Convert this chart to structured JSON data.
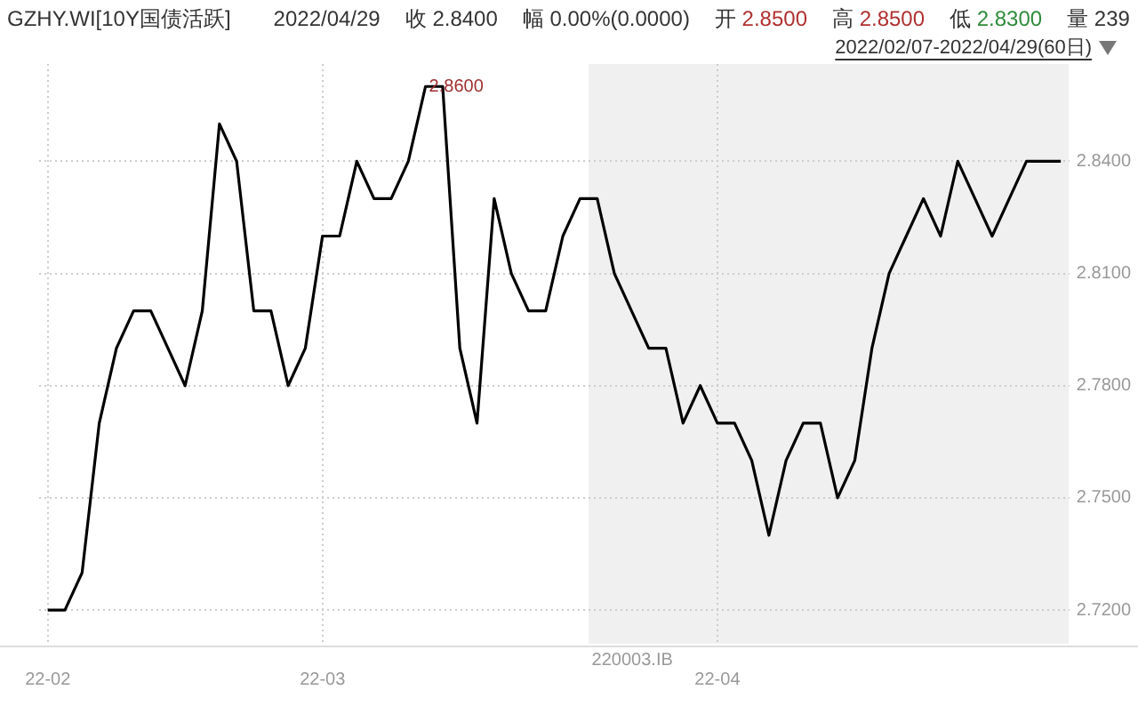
{
  "chart_data": {
    "type": "line",
    "title": "GZHY.WI[10Y国债活跃]",
    "subtitle": "2022/02/07-2022/04/29(60日)",
    "annotations": [
      "2022/04/29",
      "收 2.8400",
      "幅 0.00%(0.0000)",
      "开 2.8500",
      "高 2.8500",
      "低 2.8300",
      "量 239",
      "2.8600",
      "220003.IB"
    ],
    "categories": [
      "22-02",
      null,
      null,
      null,
      null,
      null,
      null,
      null,
      null,
      null,
      null,
      null,
      null,
      null,
      null,
      null,
      "22-03",
      null,
      null,
      null,
      null,
      null,
      null,
      null,
      null,
      null,
      null,
      null,
      null,
      null,
      null,
      null,
      null,
      null,
      null,
      null,
      null,
      null,
      null,
      "22-04",
      null,
      null,
      null,
      null,
      null,
      null,
      null,
      null,
      null,
      null,
      null,
      null,
      null,
      null,
      null,
      null,
      null,
      null,
      null,
      null
    ],
    "series": [
      {
        "color": "#000000",
        "values": [
          2.72,
          2.72,
          2.73,
          2.77,
          2.79,
          2.8,
          2.8,
          2.79,
          2.78,
          2.8,
          2.85,
          2.84,
          2.8,
          2.8,
          2.78,
          2.79,
          2.82,
          2.82,
          2.84,
          2.83,
          2.83,
          2.84,
          2.86,
          2.86,
          2.79,
          2.77,
          2.83,
          2.81,
          2.8,
          2.8,
          2.82,
          2.83,
          2.83,
          2.81,
          2.8,
          2.79,
          2.79,
          2.77,
          2.78,
          2.77,
          2.77,
          2.76,
          2.74,
          2.76,
          2.77,
          2.77,
          2.75,
          2.76,
          2.79,
          2.81,
          2.82,
          2.83,
          2.82,
          2.84,
          2.83,
          2.82,
          2.83,
          2.84,
          2.84,
          2.84
        ]
      }
    ],
    "ylim": [
      2.711,
      2.866
    ],
    "yticks": [
      {
        "value": 2.72,
        "label": "2.7200"
      },
      {
        "value": 2.75,
        "label": "2.7500"
      },
      {
        "value": 2.78,
        "label": "2.7800"
      },
      {
        "value": 2.81,
        "label": "2.8100"
      },
      {
        "value": 2.84,
        "label": "2.8400"
      }
    ],
    "grid": true,
    "legend": false,
    "marker": "none",
    "line_style": "solid"
  }
}
